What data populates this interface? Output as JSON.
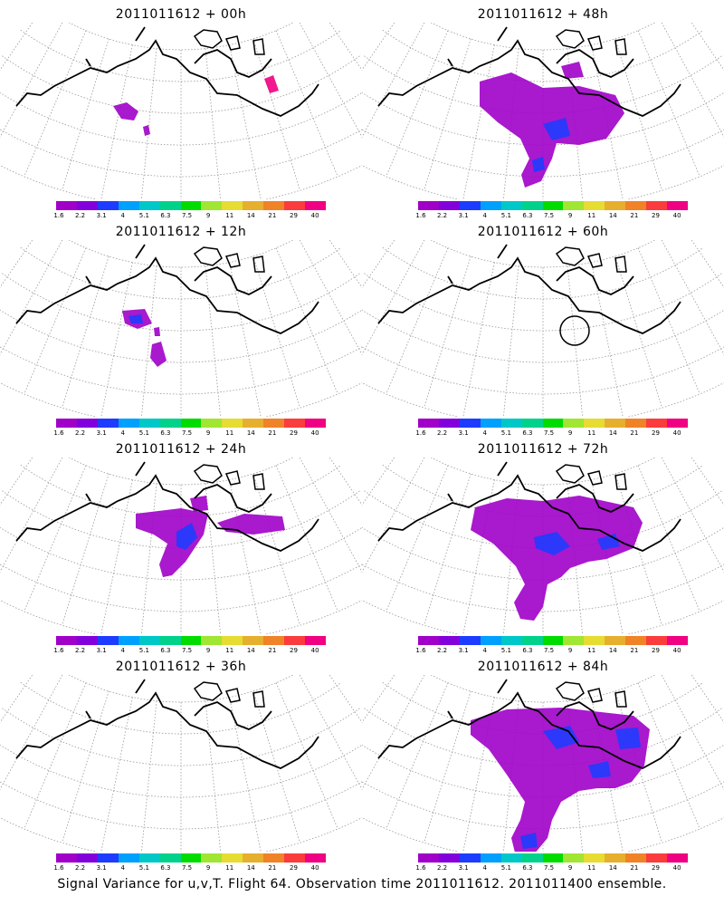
{
  "panels": [
    {
      "title": "2011011612 + 00h"
    },
    {
      "title": "2011011612 + 48h"
    },
    {
      "title": "2011011612 + 12h"
    },
    {
      "title": "2011011612 + 60h"
    },
    {
      "title": "2011011612 + 24h"
    },
    {
      "title": "2011011612 + 72h"
    },
    {
      "title": "2011011612 + 36h"
    },
    {
      "title": "2011011612 + 84h"
    }
  ],
  "colorbar": {
    "labels": [
      "1.6",
      "2.2",
      "3.1",
      "4",
      "5.1",
      "6.3",
      "7.5",
      "9",
      "11",
      "14",
      "21",
      "29",
      "40"
    ],
    "colors": [
      "#a000c8",
      "#8200dc",
      "#1e3cff",
      "#00a0ff",
      "#00c8c8",
      "#00d28c",
      "#00dc00",
      "#a0e632",
      "#e6dc32",
      "#e6af2d",
      "#f08228",
      "#fa3c3c",
      "#f00082"
    ]
  },
  "footer": "Signal Variance for u,v,T. Flight 64. Observation time 2011011612. 2011011400 ensemble."
}
